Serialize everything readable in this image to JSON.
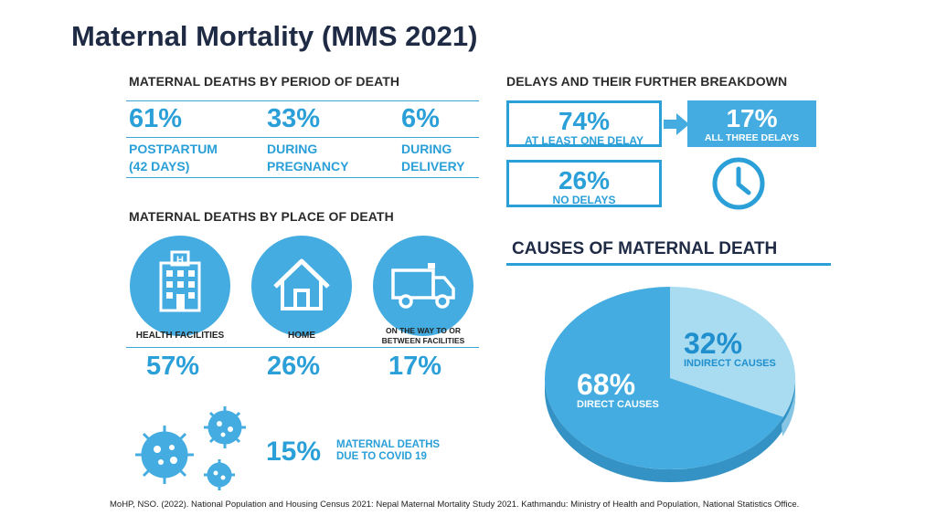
{
  "title": "Maternal Mortality (MMS 2021)",
  "period": {
    "heading": "MATERNAL DEATHS BY PERIOD OF DEATH",
    "items": [
      {
        "pct": "61%",
        "line1": "POSTPARTUM",
        "line2": "(42 DAYS)"
      },
      {
        "pct": "33%",
        "line1": "DURING",
        "line2": "PREGNANCY"
      },
      {
        "pct": "6%",
        "line1": "DURING",
        "line2": "DELIVERY"
      }
    ]
  },
  "place": {
    "heading": "MATERNAL DEATHS BY PLACE OF DEATH",
    "items": [
      {
        "icon": "hospital-icon",
        "label1": "HEALTH FACILITIES",
        "label2": "",
        "pct": "57%"
      },
      {
        "icon": "home-icon",
        "label1": "HOME",
        "label2": "",
        "pct": "26%"
      },
      {
        "icon": "ambulance-icon",
        "label1": "ON THE WAY TO OR",
        "label2": "BETWEEN FACILITIES",
        "pct": "17%"
      }
    ]
  },
  "covid": {
    "icon": "virus-icon",
    "pct": "15%",
    "line1": "MATERNAL DEATHS",
    "line2": "DUE TO COVID 19"
  },
  "delays": {
    "heading": "DELAYS AND THEIR FURTHER BREAKDOWN",
    "at_least_one": {
      "pct": "74%",
      "label": "AT LEAST ONE DELAY"
    },
    "all_three": {
      "pct": "17%",
      "label": "ALL THREE DELAYS"
    },
    "no_delays": {
      "pct": "26%",
      "label": "NO DELAYS"
    },
    "arrow_icon": "arrow-right-icon",
    "clock_icon": "clock-icon"
  },
  "causes": {
    "heading": "CAUSES OF MATERNAL DEATH",
    "slices": [
      {
        "pct": "68%",
        "label": "DIRECT CAUSES",
        "value": 68,
        "color": "#44ace0"
      },
      {
        "pct": "32%",
        "label": "INDIRECT CAUSES",
        "value": 32,
        "color": "#a9dcf1"
      }
    ]
  },
  "colors": {
    "accent": "#2a9fd8",
    "fill": "#44ace0",
    "light": "#a9dcf1"
  },
  "footer": "MoHP, NSO. (2022). National Population and Housing Census 2021: Nepal Maternal Mortality Study 2021. Kathmandu: Ministry of Health and Population, National Statistics Office."
}
